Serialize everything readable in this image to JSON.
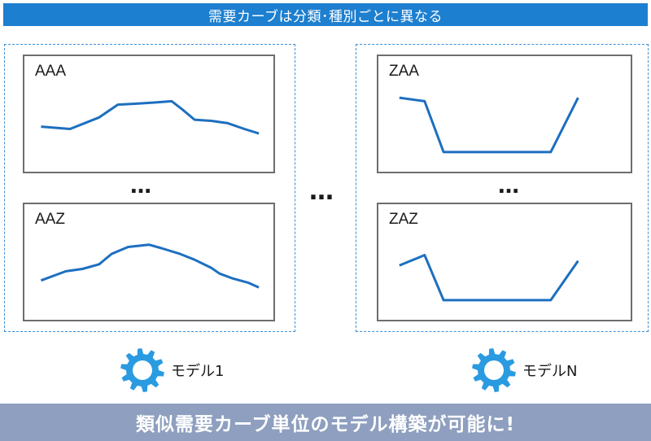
{
  "header": {
    "title": "需要カーブは分類･種別ごとに異なる"
  },
  "groups": [
    {
      "panels": [
        {
          "label": "AAA",
          "curve": [
            [
              0.08,
              0.61
            ],
            [
              0.22,
              0.63
            ],
            [
              0.36,
              0.53
            ],
            [
              0.45,
              0.42
            ],
            [
              0.55,
              0.41
            ],
            [
              0.64,
              0.4
            ],
            [
              0.71,
              0.39
            ],
            [
              0.76,
              0.46
            ],
            [
              0.82,
              0.55
            ],
            [
              0.9,
              0.56
            ],
            [
              0.98,
              0.58
            ],
            [
              1.06,
              0.63
            ],
            [
              1.13,
              0.67
            ]
          ]
        },
        {
          "label": "AAZ",
          "curve": [
            [
              0.08,
              0.66
            ],
            [
              0.14,
              0.62
            ],
            [
              0.2,
              0.58
            ],
            [
              0.28,
              0.56
            ],
            [
              0.36,
              0.52
            ],
            [
              0.42,
              0.43
            ],
            [
              0.46,
              0.4
            ],
            [
              0.5,
              0.37
            ],
            [
              0.6,
              0.35
            ],
            [
              0.66,
              0.38
            ],
            [
              0.75,
              0.43
            ],
            [
              0.82,
              0.48
            ],
            [
              0.9,
              0.55
            ],
            [
              0.94,
              0.6
            ],
            [
              1.0,
              0.64
            ],
            [
              1.08,
              0.68
            ],
            [
              1.13,
              0.72
            ]
          ]
        }
      ],
      "dots": "…",
      "model": {
        "label": "モデル1"
      }
    },
    {
      "panels": [
        {
          "label": "ZAA",
          "curve": [
            [
              0.1,
              0.36
            ],
            [
              0.22,
              0.39
            ],
            [
              0.31,
              0.83
            ],
            [
              0.82,
              0.83
            ],
            [
              0.95,
              0.36
            ]
          ]
        },
        {
          "label": "ZAZ",
          "curve": [
            [
              0.1,
              0.53
            ],
            [
              0.22,
              0.44
            ],
            [
              0.31,
              0.83
            ],
            [
              0.82,
              0.83
            ],
            [
              0.95,
              0.49
            ]
          ]
        }
      ],
      "dots": "…",
      "model": {
        "label": "モデルN"
      }
    }
  ],
  "middle_dots": "…",
  "footer": {
    "text": "類似需要カーブ単位のモデル構築が可能に!"
  },
  "colors": {
    "accent": "#1d7fcf",
    "curve": "#1d6fbf",
    "gear": "#2a9be0",
    "footer": "#8e9fbf"
  }
}
